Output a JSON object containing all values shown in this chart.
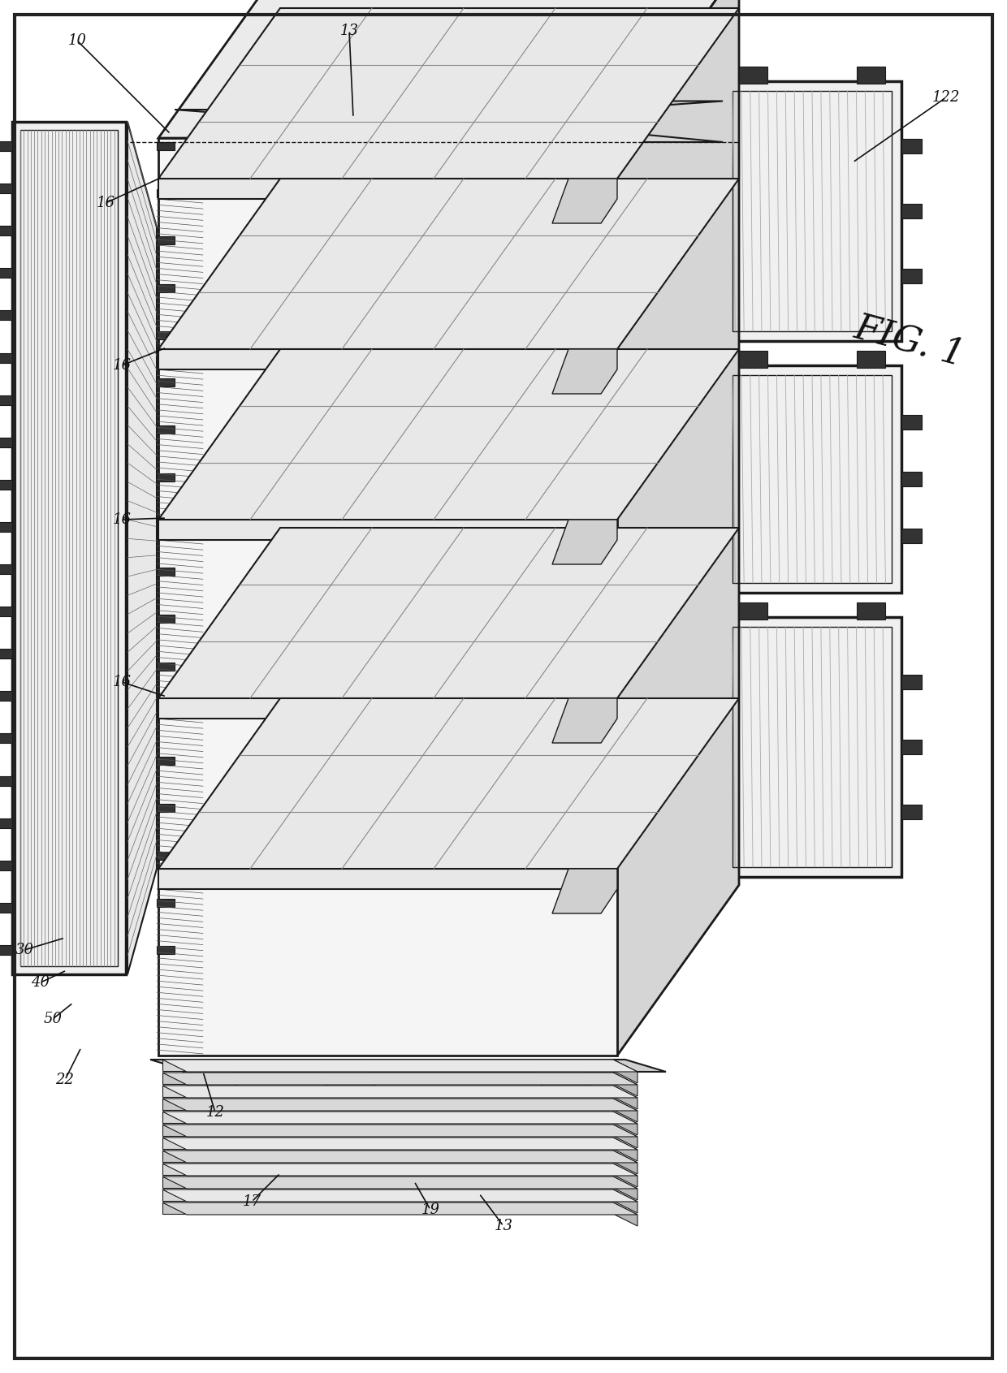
{
  "background_color": "#ffffff",
  "line_color": "#1a1a1a",
  "fig_width": 12.4,
  "fig_height": 16.91,
  "dpi": 100,
  "border_color": "#222222",
  "label_fontsize": 13,
  "figlabel_fontsize": 30,
  "annotation_color": "#111111",
  "shelf_fill": "#f8f8f8",
  "shelf_top_fill": "#e8e8e8",
  "shelf_side_fill": "#d0d0d0",
  "main_box_front_fill": "#f5f5f5",
  "main_box_top_fill": "#ebebeb",
  "main_box_right_fill": "#d5d5d5",
  "cell_stack_fill_a": "#e0e0e0",
  "cell_stack_fill_b": "#cccccc",
  "left_panel_fill": "#f0f0f0",
  "right_panel_fill": "#f0f0f0",
  "dark_connector": "#333333",
  "mid_connector": "#666666",
  "light_hatch": "#aaaaaa"
}
